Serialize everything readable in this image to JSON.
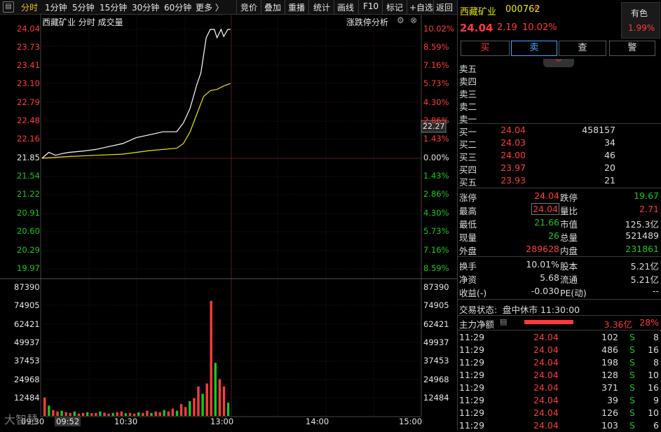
{
  "toolbar": {
    "tabs": [
      "分时",
      "1分钟",
      "5分钟",
      "15分钟",
      "30分钟",
      "60分钟",
      "更多 〉"
    ],
    "tools": [
      "竞价",
      "叠加",
      "重播",
      "统计",
      "画线",
      "F10",
      "标记",
      "+自选",
      "返回"
    ]
  },
  "chart": {
    "title": "西藏矿业  分时  成交量",
    "analysis_label": "涨跌停分析",
    "current_price_tag": "22.27",
    "price_ticks": [
      "24.04",
      "23.73",
      "23.41",
      "23.10",
      "22.79",
      "22.48",
      "22.16",
      "21.85",
      "21.54",
      "21.22",
      "20.91",
      "20.60",
      "20.29",
      "19.97"
    ],
    "pct_ticks": [
      "10.02%",
      "8.59%",
      "7.16%",
      "5.73%",
      "4.30%",
      "2.86%",
      "1.43%",
      "0.00%",
      "1.43%",
      "2.86%",
      "4.30%",
      "5.73%",
      "7.16%",
      "8.59%"
    ],
    "volume_ticks": [
      "87390",
      "74905",
      "62421",
      "49937",
      "37453",
      "24968",
      "12484"
    ],
    "time_ticks": [
      "09:30",
      "10:30",
      "13:00",
      "14:00",
      "15:00"
    ],
    "cursor_time": "09:52",
    "watermark": "大智慧"
  },
  "chart_data": {
    "type": "line",
    "title": "西藏矿业 分时 成交量",
    "xlabel": "",
    "ylabel": "",
    "ylim": [
      19.97,
      24.04
    ],
    "prev_close": 21.85,
    "series": [
      {
        "name": "price",
        "x": [
          0,
          5,
          10,
          15,
          20,
          30,
          40,
          50,
          60,
          70,
          80,
          90,
          100,
          105,
          110,
          115,
          118,
          120,
          122,
          125,
          128,
          130,
          133,
          135,
          138,
          140
        ],
        "values": [
          21.85,
          21.95,
          21.9,
          21.93,
          21.95,
          21.97,
          22.0,
          22.05,
          22.1,
          22.2,
          22.25,
          22.3,
          22.3,
          22.45,
          22.7,
          23.1,
          23.3,
          23.6,
          23.9,
          24.04,
          24.04,
          23.9,
          24.04,
          23.92,
          24.04,
          24.04
        ]
      },
      {
        "name": "avg",
        "x": [
          0,
          20,
          40,
          60,
          80,
          100,
          105,
          110,
          115,
          120,
          125,
          130,
          135,
          140
        ],
        "values": [
          21.85,
          21.88,
          21.9,
          21.92,
          21.98,
          22.02,
          22.1,
          22.3,
          22.6,
          22.9,
          23.0,
          23.02,
          23.08,
          23.12
        ]
      }
    ],
    "volume": {
      "ylim": [
        0,
        87390
      ],
      "values": [
        12484,
        7000,
        4000,
        3000,
        3500,
        2500,
        2000,
        3000,
        1500,
        2000,
        2500,
        1800,
        2000,
        3000,
        2200,
        1500,
        2000,
        2500,
        3000,
        1800,
        2000,
        1500,
        2500,
        2000,
        3500,
        2000,
        3000,
        2500,
        4000,
        3000,
        5000,
        3500,
        8000,
        6000,
        10000,
        12000,
        20000,
        15000,
        22000,
        78000,
        36000,
        25000,
        20000,
        9000
      ]
    }
  },
  "stock": {
    "name": "西藏矿业",
    "code": "000762",
    "tag": "R",
    "price": "24.04",
    "change": "2.19",
    "pct": "10.02%",
    "color_label": "有色",
    "color_pct": "1.99%"
  },
  "actions": {
    "buy": "买",
    "sell": "卖",
    "check": "查",
    "alert": "警"
  },
  "order_book": {
    "asks": [
      {
        "label": "卖五"
      },
      {
        "label": "卖四"
      },
      {
        "label": "卖三"
      },
      {
        "label": "卖二"
      },
      {
        "label": "卖一"
      }
    ],
    "bids": [
      {
        "label": "买一",
        "price": "24.04",
        "vol": "458157"
      },
      {
        "label": "买二",
        "price": "24.03",
        "vol": "34"
      },
      {
        "label": "买三",
        "price": "24.00",
        "vol": "46"
      },
      {
        "label": "买四",
        "price": "23.97",
        "vol": "20"
      },
      {
        "label": "买五",
        "price": "23.93",
        "vol": "21"
      }
    ]
  },
  "quotes": [
    {
      "k1": "涨停",
      "v1": "24.04",
      "k2": "跌停",
      "v2": "19.67"
    },
    {
      "k1": "最高",
      "v1": "24.04",
      "k2": "量比",
      "v2": "2.71"
    },
    {
      "k1": "最低",
      "v1": "21.66",
      "k2": "市值",
      "v2": "125.3亿"
    },
    {
      "k1": "现量",
      "v1": "26",
      "k2": "总量",
      "v2": "521489"
    },
    {
      "k1": "外盘",
      "v1": "289628",
      "k2": "内盘",
      "v2": "231861"
    }
  ],
  "fundamentals": [
    {
      "k1": "换手",
      "v1": "10.01%",
      "k2": "股本",
      "v2": "5.21亿"
    },
    {
      "k1": "净资",
      "v1": "5.68",
      "k2": "流通",
      "v2": "5.21亿"
    },
    {
      "k1": "收益(-)",
      "v1": "-0.030",
      "k2": "PE(动)",
      "v2": "--"
    }
  ],
  "status": {
    "label": "交易状态:",
    "value": "盘中休市 11:30:00"
  },
  "main_flow": {
    "label": "主力净额",
    "amount": "3.36亿",
    "pct": "28%"
  },
  "trades": [
    {
      "time": "11:29",
      "price": "24.04",
      "vol": "102",
      "side": "S",
      "count": "8"
    },
    {
      "time": "11:29",
      "price": "24.04",
      "vol": "486",
      "side": "S",
      "count": "16"
    },
    {
      "time": "11:29",
      "price": "24.04",
      "vol": "198",
      "side": "S",
      "count": "8"
    },
    {
      "time": "11:29",
      "price": "24.04",
      "vol": "128",
      "side": "S",
      "count": "10"
    },
    {
      "time": "11:29",
      "price": "24.04",
      "vol": "371",
      "side": "S",
      "count": "16"
    },
    {
      "time": "11:29",
      "price": "24.04",
      "vol": "39",
      "side": "S",
      "count": "9"
    },
    {
      "time": "11:29",
      "price": "24.04",
      "vol": "126",
      "side": "S",
      "count": "10"
    },
    {
      "time": "11:29",
      "price": "24.04",
      "vol": "103",
      "side": "S",
      "count": "6"
    }
  ]
}
